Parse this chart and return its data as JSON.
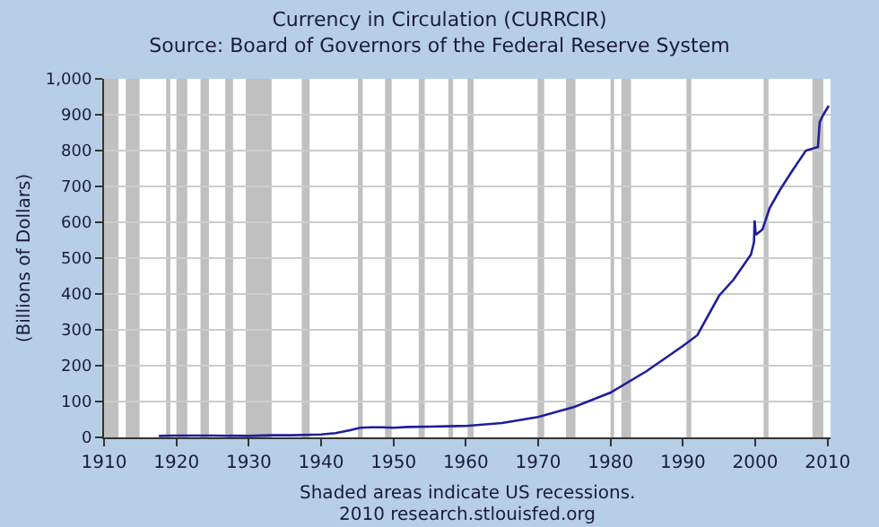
{
  "chart_data": {
    "type": "line",
    "title": "Currency in Circulation (CURRCIR)",
    "subtitle": "Source: Board of Governors of the Federal Reserve System",
    "ylabel": "(Billions of Dollars)",
    "x": [
      "1917-08",
      "1920-01",
      "1925-01",
      "1930-01",
      "1933-03",
      "1936-01",
      "1940-01",
      "1942-01",
      "1944-01",
      "1945-06",
      "1947-01",
      "1948-06",
      "1950-01",
      "1952-01",
      "1955-01",
      "1960-01",
      "1965-01",
      "1970-01",
      "1975-01",
      "1980-01",
      "1985-01",
      "1990-01",
      "1992-01",
      "1995-01",
      "1997-01",
      "1999-06",
      "1999-11",
      "1999-12",
      "2000-02",
      "2001-01",
      "2002-01",
      "2003-06",
      "2005-01",
      "2007-01",
      "2008-09",
      "2008-12",
      "2009-06",
      "2010-03"
    ],
    "series": [
      {
        "color": "#1f1f9a",
        "values": [
          4,
          5,
          5,
          4,
          6,
          6,
          8,
          12,
          20,
          27,
          28,
          28,
          27,
          29,
          30,
          32,
          40,
          57,
          85,
          125,
          185,
          255,
          285,
          395,
          440,
          510,
          545,
          605,
          565,
          580,
          640,
          690,
          740,
          800,
          810,
          880,
          900,
          925
        ]
      }
    ],
    "xlim": [
      "1910-01",
      "2010-06"
    ],
    "ylim": [
      0,
      1000
    ],
    "xticks": [
      {
        "value": "1910-01-01",
        "label": "1910"
      },
      {
        "value": "1920-01-01",
        "label": "1920"
      },
      {
        "value": "1930-01-01",
        "label": "1930"
      },
      {
        "value": "1940-01-01",
        "label": "1940"
      },
      {
        "value": "1950-01-01",
        "label": "1950"
      },
      {
        "value": "1960-01-01",
        "label": "1960"
      },
      {
        "value": "1970-01-01",
        "label": "1970"
      },
      {
        "value": "1980-01-01",
        "label": "1980"
      },
      {
        "value": "1990-01-01",
        "label": "1990"
      },
      {
        "value": "2000-01-01",
        "label": "2000"
      },
      {
        "value": "2010-01-01",
        "label": "2010"
      }
    ],
    "yticks": [
      0,
      100,
      200,
      300,
      400,
      500,
      600,
      700,
      800,
      900,
      {
        "value": 1000,
        "label": "1,000"
      }
    ],
    "bands": [
      {
        "axis": "x",
        "from": "1910-01",
        "to": "1912-01",
        "color": "#c0c0c0"
      },
      {
        "axis": "x",
        "from": "1913-01",
        "to": "1914-12",
        "color": "#c0c0c0"
      },
      {
        "axis": "x",
        "from": "1918-08",
        "to": "1919-03",
        "color": "#c0c0c0"
      },
      {
        "axis": "x",
        "from": "1920-01",
        "to": "1921-07",
        "color": "#c0c0c0"
      },
      {
        "axis": "x",
        "from": "1923-05",
        "to": "1924-07",
        "color": "#c0c0c0"
      },
      {
        "axis": "x",
        "from": "1926-10",
        "to": "1927-11",
        "color": "#c0c0c0"
      },
      {
        "axis": "x",
        "from": "1929-08",
        "to": "1933-03",
        "color": "#c0c0c0"
      },
      {
        "axis": "x",
        "from": "1937-05",
        "to": "1938-06",
        "color": "#c0c0c0"
      },
      {
        "axis": "x",
        "from": "1945-02",
        "to": "1945-10",
        "color": "#c0c0c0"
      },
      {
        "axis": "x",
        "from": "1948-11",
        "to": "1949-10",
        "color": "#c0c0c0"
      },
      {
        "axis": "x",
        "from": "1953-07",
        "to": "1954-05",
        "color": "#c0c0c0"
      },
      {
        "axis": "x",
        "from": "1957-08",
        "to": "1958-04",
        "color": "#c0c0c0"
      },
      {
        "axis": "x",
        "from": "1960-04",
        "to": "1961-02",
        "color": "#c0c0c0"
      },
      {
        "axis": "x",
        "from": "1969-12",
        "to": "1970-11",
        "color": "#c0c0c0"
      },
      {
        "axis": "x",
        "from": "1973-11",
        "to": "1975-03",
        "color": "#c0c0c0"
      },
      {
        "axis": "x",
        "from": "1980-01",
        "to": "1980-07",
        "color": "#c0c0c0"
      },
      {
        "axis": "x",
        "from": "1981-07",
        "to": "1982-11",
        "color": "#c0c0c0"
      },
      {
        "axis": "x",
        "from": "1990-07",
        "to": "1991-03",
        "color": "#c0c0c0"
      },
      {
        "axis": "x",
        "from": "2001-03",
        "to": "2001-11",
        "color": "#c0c0c0"
      },
      {
        "axis": "x",
        "from": "2007-12",
        "to": "2009-06",
        "color": "#c0c0c0"
      }
    ],
    "annotations": [
      "Shaded areas indicate US recessions.",
      "2010 research.stlouisfed.org"
    ],
    "grid": "y",
    "marker": "none",
    "line_style": "solid"
  }
}
